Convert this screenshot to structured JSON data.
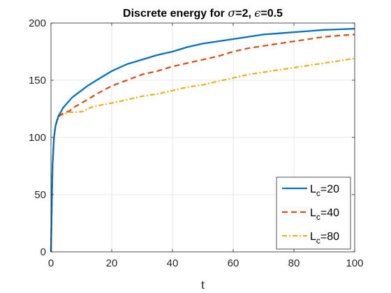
{
  "chart_data": {
    "type": "line",
    "title": "Discrete energy for σ=2, ϵ=0.5",
    "title_parts": {
      "prefix": "Discrete energy for ",
      "sigma_symbol": "σ",
      "middle": "=2, ",
      "epsilon_symbol": "ϵ",
      "suffix": "=0.5"
    },
    "xlabel": "t",
    "ylabel": "",
    "xlim": [
      0,
      100
    ],
    "ylim": [
      0,
      200
    ],
    "xticks": [
      0,
      20,
      40,
      60,
      80,
      100
    ],
    "yticks": [
      0,
      50,
      100,
      150,
      200
    ],
    "grid": true,
    "legend_position": "bottom-right",
    "series": [
      {
        "name": "L_c=20",
        "legend_base": "L",
        "legend_sub": "c",
        "legend_rest": "=20",
        "color": "#0072BD",
        "dash": "solid",
        "x": [
          0,
          0.5,
          1,
          1.5,
          2,
          2.5,
          3,
          4,
          5,
          6,
          7,
          8,
          10,
          12,
          15,
          20,
          25,
          30,
          35,
          40,
          45,
          50,
          55,
          60,
          65,
          70,
          75,
          80,
          85,
          90,
          95,
          100
        ],
        "y": [
          0,
          75,
          100,
          110,
          115,
          119,
          121,
          126,
          129,
          132,
          135,
          137,
          141,
          145,
          150,
          158,
          164,
          168,
          172,
          175,
          179,
          182,
          184,
          186,
          188,
          190,
          191,
          192,
          193,
          194,
          194.5,
          195
        ]
      },
      {
        "name": "L_c=40",
        "legend_base": "L",
        "legend_sub": "c",
        "legend_rest": "=40",
        "color": "#D95319",
        "dash": "dashed",
        "x": [
          0,
          0.5,
          1,
          1.5,
          2,
          2.5,
          3,
          4,
          5,
          6,
          7,
          8,
          10,
          12,
          15,
          20,
          25,
          30,
          35,
          40,
          45,
          50,
          55,
          60,
          65,
          70,
          75,
          80,
          85,
          90,
          95,
          100
        ],
        "y": [
          0,
          75,
          100,
          110,
          115,
          118,
          119.5,
          121,
          122,
          123,
          125,
          127,
          130,
          133,
          138,
          145,
          150,
          155,
          158,
          162,
          165,
          168,
          171,
          175,
          178,
          180,
          182,
          184,
          186,
          188,
          189,
          190
        ]
      },
      {
        "name": "L_c=80",
        "legend_base": "L",
        "legend_sub": "c",
        "legend_rest": "=80",
        "color": "#EDB120",
        "dash": "dashdot",
        "x": [
          0,
          0.5,
          1,
          1.5,
          2,
          2.5,
          3,
          4,
          5,
          6,
          7,
          8,
          10,
          11,
          12,
          14,
          16,
          20,
          25,
          30,
          35,
          40,
          45,
          50,
          55,
          60,
          65,
          70,
          75,
          80,
          85,
          90,
          95,
          100
        ],
        "y": [
          0,
          75,
          100,
          110,
          114,
          117,
          119,
          120,
          121,
          122,
          122,
          122,
          122.5,
          123,
          125,
          127,
          128,
          130,
          133,
          136,
          138,
          141,
          144,
          146,
          149,
          152,
          155,
          157,
          159,
          161,
          163,
          165,
          167,
          169
        ]
      }
    ]
  }
}
